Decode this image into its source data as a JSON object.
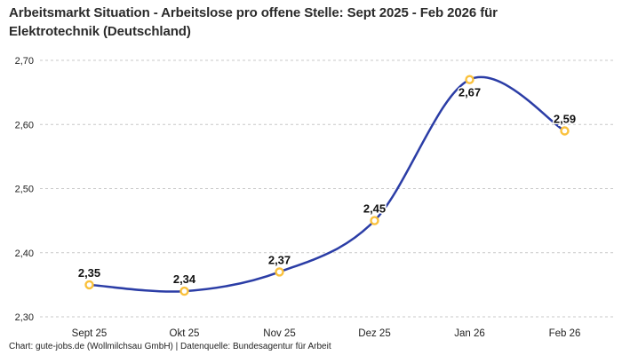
{
  "header": {
    "title_line1": "Arbeitsmarkt Situation - Arbeitslose pro offene Stelle: Sept 2025 - Feb 2026 für",
    "title_line2": "Elektrotechnik (Deutschland)"
  },
  "footer": {
    "attribution": "Chart: gute-jobs.de (Wollmilchsau GmbH) | Datenquelle: Bundesagentur für Arbeit"
  },
  "chart_data": {
    "type": "line",
    "title": "Arbeitsmarkt Situation - Arbeitslose pro offene Stelle: Sept 2025 - Feb 2026 für Elektrotechnik (Deutschland)",
    "categories": [
      "Sept 25",
      "Okt 25",
      "Nov 25",
      "Dez 25",
      "Jan 26",
      "Feb 26"
    ],
    "values": [
      2.35,
      2.34,
      2.37,
      2.45,
      2.67,
      2.59
    ],
    "point_labels": [
      "2,35",
      "2,34",
      "2,37",
      "2,45",
      "2,67",
      "2,59"
    ],
    "label_positions": [
      "above",
      "above",
      "above",
      "above",
      "below",
      "above"
    ],
    "y_ticks": [
      2.3,
      2.4,
      2.5,
      2.6,
      2.7
    ],
    "y_tick_labels": [
      "2,30",
      "2,40",
      "2,50",
      "2,60",
      "2,70"
    ],
    "ylim": [
      2.3,
      2.7
    ],
    "xlabel": "",
    "ylabel": "",
    "grid": "dashed-horizontal",
    "legend": "none",
    "colors": {
      "line": "#2b3da6",
      "marker_stroke": "#fac13c",
      "marker_fill": "#ffffff",
      "grid": "#c9c9c9",
      "axis_text": "#222222",
      "label_text": "#111111",
      "title": "#2b2b2b"
    }
  }
}
